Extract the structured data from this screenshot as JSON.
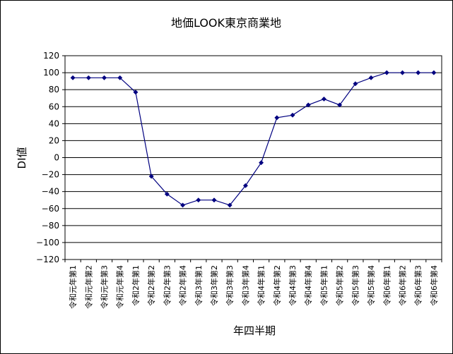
{
  "chart_data": {
    "type": "line",
    "title": "地価LOOK東京商業地",
    "xlabel": "年四半期",
    "ylabel": "DI値",
    "ylim": [
      -120,
      120
    ],
    "yticks": [
      120,
      100,
      80,
      60,
      40,
      20,
      0,
      -20,
      -40,
      -60,
      -80,
      -100,
      -120
    ],
    "grid": true,
    "legend": "none",
    "categories": [
      "令和元年第1",
      "令和元年第2",
      "令和元年第3",
      "令和元年第4",
      "令和2年第1",
      "令和2年第2",
      "令和2年第3",
      "令和2年第4",
      "令和3年第1",
      "令和3年第2",
      "令和3年第3",
      "令和3年第4",
      "令和4年第1",
      "令和4年第2",
      "令和4年第3",
      "令和4年第4",
      "令和5年第1",
      "令和5年第2",
      "令和5年第3",
      "令和5年第4",
      "令和6年第1",
      "令和6年第2",
      "令和6年第3",
      "令和6年第4"
    ],
    "series": [
      {
        "values": [
          94,
          94,
          94,
          94,
          77,
          -22,
          -43,
          -56,
          -50,
          -50,
          -56,
          -33,
          -6,
          47,
          50,
          62,
          69,
          62,
          87,
          94,
          100,
          100,
          100,
          100
        ],
        "color": "#000080"
      }
    ]
  }
}
